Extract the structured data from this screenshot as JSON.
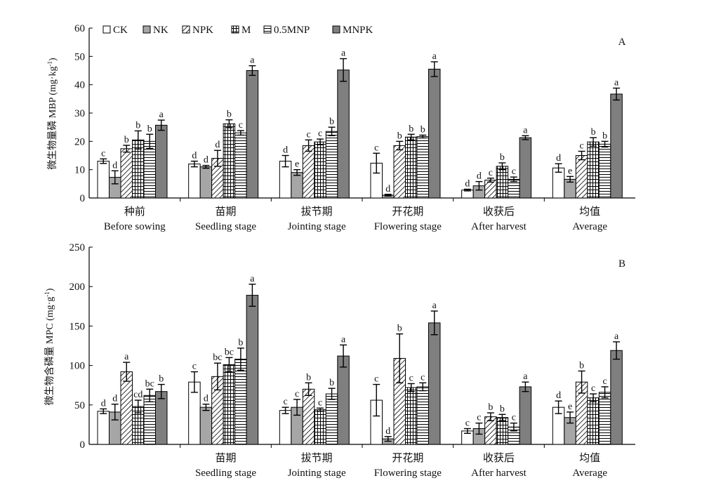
{
  "legend": {
    "items": [
      {
        "label": "CK",
        "pattern": "white"
      },
      {
        "label": "NK",
        "pattern": "lightgray"
      },
      {
        "label": "NPK",
        "pattern": "diag"
      },
      {
        "label": "M",
        "pattern": "grid"
      },
      {
        "label": "0.5MNP",
        "pattern": "hlines"
      },
      {
        "label": "MNPK",
        "pattern": "darkgray"
      }
    ]
  },
  "colors": {
    "lightgray": "#a6a6a6",
    "darkgray": "#7f7f7f",
    "stroke": "#000000"
  },
  "chart_data": [
    {
      "type": "bar",
      "panel_label": "A",
      "ylabel": "微生物量磷 MBP (mg·kg-1)",
      "ylabel_main": "微生物量磷 MBP (mg·kg",
      "ylabel_sup": "-1",
      "ylabel_end": ")",
      "ylim": [
        0,
        60
      ],
      "yticks": [
        0,
        10,
        20,
        30,
        40,
        50,
        60
      ],
      "categories_cn": [
        "种前",
        "苗期",
        "拔节期",
        "开花期",
        "收获后",
        "均值"
      ],
      "categories_en": [
        "Before sowing",
        "Seedling stage",
        "Jointing stage",
        "Flowering stage",
        "After harvest",
        "Average"
      ],
      "series": [
        {
          "name": "CK",
          "values": [
            13,
            12,
            13,
            12.3,
            2.8,
            10.6
          ],
          "errors": [
            0.8,
            1,
            2,
            3.5,
            0.3,
            1.5
          ],
          "labels": [
            "c",
            "d",
            "d",
            "c",
            "d",
            "d"
          ]
        },
        {
          "name": "NK",
          "values": [
            7.3,
            11,
            9,
            1,
            4.3,
            6.6
          ],
          "errors": [
            2.3,
            0.5,
            1,
            0.3,
            1.5,
            1
          ],
          "labels": [
            "d",
            "d",
            "e",
            "d",
            "d",
            "e"
          ]
        },
        {
          "name": "NPK",
          "values": [
            17.4,
            14,
            18.5,
            18.5,
            6.3,
            15
          ],
          "errors": [
            1.2,
            2.8,
            2,
            1.5,
            0.7,
            1.5
          ],
          "labels": [
            "b",
            "d",
            "c",
            "b",
            "c",
            "c"
          ]
        },
        {
          "name": "M",
          "values": [
            20.5,
            26.2,
            19.8,
            21.5,
            11.2,
            19.8
          ],
          "errors": [
            3.2,
            1.4,
            1,
            1,
            1.2,
            1.5
          ],
          "labels": [
            "b",
            "b",
            "c",
            "b",
            "b",
            "b"
          ]
        },
        {
          "name": "0.5MNP",
          "values": [
            20,
            23,
            23.5,
            21.7,
            6.6,
            19
          ],
          "errors": [
            2.5,
            0.8,
            1.5,
            0.5,
            0.8,
            1
          ],
          "labels": [
            "b",
            "c",
            "b",
            "b",
            "c",
            "b"
          ]
        },
        {
          "name": "MNPK",
          "values": [
            25.7,
            45,
            45.2,
            45.5,
            21.3,
            36.7
          ],
          "errors": [
            1.8,
            1.7,
            4,
            2.6,
            0.7,
            2.1
          ],
          "labels": [
            "a",
            "a",
            "a",
            "a",
            "a",
            "a"
          ]
        }
      ]
    },
    {
      "type": "bar",
      "panel_label": "B",
      "ylabel": "微生物含磷量 MPC (mg·g-1)",
      "ylabel_main": "微生物含磷量 MPC (mg·g",
      "ylabel_sup": "-1",
      "ylabel_end": ")",
      "ylim": [
        0,
        250
      ],
      "yticks": [
        0,
        50,
        100,
        150,
        200,
        250
      ],
      "categories_cn": [
        "",
        "苗期",
        "拔节期",
        "开花期",
        "收获后",
        "均值"
      ],
      "categories_en": [
        "",
        "Seedling stage",
        "Jointing stage",
        "Flowering stage",
        "After harvest",
        "Average"
      ],
      "series": [
        {
          "name": "CK",
          "values": [
            42,
            79,
            43,
            56,
            17,
            47
          ],
          "errors": [
            3,
            13,
            4,
            20,
            3,
            8
          ],
          "labels": [
            "d",
            "c",
            "c",
            "c",
            "c",
            "d"
          ]
        },
        {
          "name": "NK",
          "values": [
            41,
            47,
            47,
            7,
            20,
            34
          ],
          "errors": [
            10,
            4,
            10,
            3,
            7,
            7
          ],
          "labels": [
            "d",
            "d",
            "c",
            "d",
            "c",
            "e"
          ]
        },
        {
          "name": "NPK",
          "values": [
            92,
            86,
            70,
            109,
            35,
            79
          ],
          "errors": [
            12,
            17,
            8,
            31,
            5,
            14
          ],
          "labels": [
            "a",
            "bc",
            "b",
            "b",
            "b",
            "b"
          ]
        },
        {
          "name": "M",
          "values": [
            48,
            101,
            44,
            72,
            34,
            59
          ],
          "errors": [
            8,
            9,
            2,
            5,
            4,
            5
          ],
          "labels": [
            "cd",
            "bc",
            "c",
            "c",
            "b",
            "c"
          ]
        },
        {
          "name": "0.5MNP",
          "values": [
            62,
            108,
            64,
            73,
            22,
            66
          ],
          "errors": [
            8,
            14,
            7,
            5,
            5,
            7
          ],
          "labels": [
            "bc",
            "b",
            "b",
            "c",
            "c",
            "c"
          ]
        },
        {
          "name": "MNPK",
          "values": [
            67,
            189,
            112,
            154,
            73,
            119
          ],
          "errors": [
            9,
            14,
            14,
            15,
            6,
            11
          ],
          "labels": [
            "b",
            "a",
            "a",
            "a",
            "a",
            "a"
          ]
        }
      ]
    }
  ]
}
